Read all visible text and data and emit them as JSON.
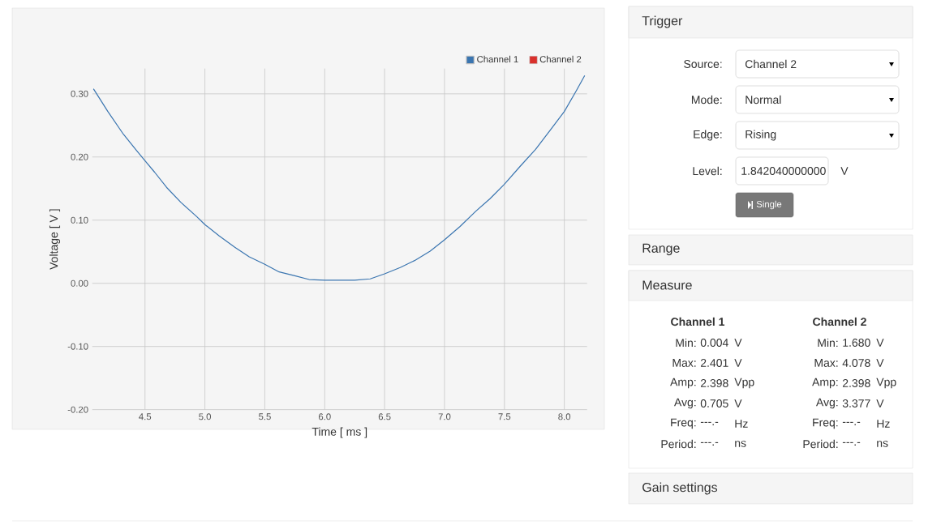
{
  "chart_data": [
    {
      "type": "line",
      "xlabel": "Time [ ms ]",
      "ylabel": "Voltage [ V ]",
      "x": [
        4.07,
        4.19,
        4.32,
        4.43,
        4.5,
        4.58,
        4.68,
        4.8,
        4.93,
        5.0,
        5.12,
        5.25,
        5.37,
        5.5,
        5.62,
        5.75,
        5.87,
        6.0,
        6.13,
        6.25,
        6.38,
        6.5,
        6.63,
        6.75,
        6.88,
        7.0,
        7.13,
        7.26,
        7.38,
        7.5,
        7.63,
        7.76,
        7.88,
        8.0,
        8.1,
        8.17
      ],
      "series": [
        {
          "name": "Channel 1",
          "color": "#3a75b0",
          "values": [
            0.308,
            0.272,
            0.236,
            0.21,
            0.194,
            0.176,
            0.152,
            0.128,
            0.106,
            0.093,
            0.075,
            0.057,
            0.042,
            0.03,
            0.018,
            0.012,
            0.006,
            0.005,
            0.005,
            0.005,
            0.007,
            0.015,
            0.025,
            0.036,
            0.051,
            0.069,
            0.09,
            0.114,
            0.134,
            0.157,
            0.185,
            0.212,
            0.242,
            0.272,
            0.305,
            0.329
          ]
        },
        {
          "name": "Channel 2",
          "color": "#d9302c",
          "values": [
            null,
            null,
            null,
            null,
            null,
            null,
            null,
            null,
            null,
            null,
            null,
            null,
            null,
            null,
            null,
            null,
            null,
            null,
            null,
            null,
            null,
            null,
            null,
            null,
            null,
            null,
            null,
            null,
            null,
            null,
            null,
            null,
            null,
            null,
            null,
            null
          ]
        }
      ],
      "xlim": [
        4.06,
        8.19
      ],
      "ylim": [
        -0.2,
        0.34
      ],
      "xticks": [
        4.5,
        {
          "value": 5,
          "label": "5.0"
        },
        5.5,
        {
          "value": 6,
          "label": "6.0"
        },
        6.5,
        {
          "value": 7,
          "label": "7.0"
        },
        7.5,
        {
          "value": 8,
          "label": "8.0"
        }
      ],
      "yticks": [
        {
          "value": -0.2,
          "label": "-0.20"
        },
        {
          "value": -0.1,
          "label": "-0.10"
        },
        {
          "value": 0,
          "label": "0.00"
        },
        {
          "value": 0.1,
          "label": "0.10"
        },
        {
          "value": 0.2,
          "label": "0.20"
        },
        {
          "value": 0.3,
          "label": "0.30"
        }
      ],
      "grid": true,
      "legend": "top right",
      "line_style": "solid"
    },
    {
      "type": "other",
      "annotations": [
        "Trigger",
        "Source:",
        "Channel 2",
        "Mode:",
        "Normal",
        "Edge:",
        "Rising",
        "Level:",
        "1.842040000000",
        "V",
        "Single",
        "Range",
        "Measure",
        "Channel 1",
        "Min:",
        "0.004",
        "V",
        "Max:",
        "2.401",
        "V",
        "Amp:",
        "2.398",
        "Vpp",
        "Avg:",
        "0.705",
        "V",
        "Freq:",
        "---.-",
        "Hz",
        "Period:",
        "---.-",
        "ns",
        "Channel 2",
        "Min:",
        "1.680",
        "V",
        "Max:",
        "4.078",
        "V",
        "Amp:",
        "2.398",
        "Vpp",
        "Avg:",
        "3.377",
        "V",
        "Freq:",
        "---.-",
        "Hz",
        "Period:",
        "---.-",
        "ns",
        "Gain settings"
      ]
    }
  ]
}
